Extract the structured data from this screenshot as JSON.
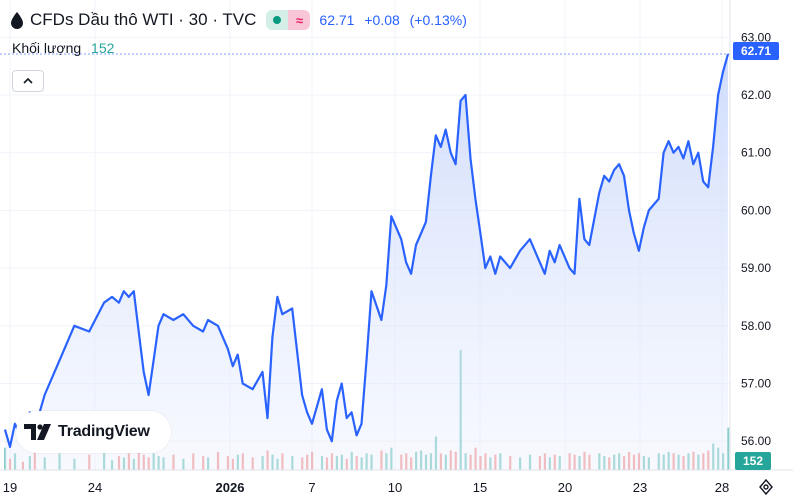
{
  "header": {
    "title": "CFDs Dầu thô WTI · 30 · TVC",
    "price": "62.71",
    "change": "+0.08",
    "change_pct": "(+0.13%)",
    "volume_label": "Khối lượng",
    "volume_value": "152"
  },
  "logo_text": "TradingView",
  "colors": {
    "line": "#2962ff",
    "area_top": "#c7d6fb",
    "vol_up": "#26a69a",
    "vol_down": "#ef5350",
    "price_tag": "#2962ff",
    "vol_tag": "#26a69a"
  },
  "icons": [
    "drop-icon",
    "chevron-up-icon",
    "tradingview-logo-icon",
    "settings-icon"
  ],
  "chart_data": {
    "type": "area",
    "price_axis_labels": [
      "63.00",
      "62.00",
      "61.00",
      "60.00",
      "59.00",
      "58.00",
      "57.00",
      "56.00"
    ],
    "time_axis_labels": [
      "19",
      "24",
      "2026",
      "7",
      "10",
      "15",
      "20",
      "23",
      "28"
    ],
    "ylim": [
      55.5,
      63.3
    ],
    "last_price_label": "62.71",
    "last_volume_label": "152",
    "grid": true,
    "x_index": [
      0,
      5,
      10,
      18,
      25,
      30,
      40,
      55,
      70,
      85,
      100,
      108,
      115,
      120,
      125,
      130,
      135,
      140,
      145,
      150,
      155,
      160,
      170,
      180,
      190,
      200,
      205,
      215,
      225,
      230,
      235,
      240,
      250,
      260,
      265,
      270,
      275,
      280,
      290,
      300,
      305,
      310,
      320,
      325,
      330,
      335,
      340,
      345,
      350,
      355,
      360,
      365,
      370,
      380,
      385,
      390,
      400,
      405,
      410,
      415,
      420,
      425,
      430,
      435,
      440,
      445,
      450,
      455,
      460,
      465,
      470,
      475,
      480,
      485,
      490,
      495,
      500,
      510,
      520,
      530,
      540,
      545,
      550,
      555,
      560,
      570,
      575,
      580,
      585,
      590,
      600,
      605,
      610,
      615,
      620,
      625,
      630,
      635,
      640,
      645,
      650,
      660,
      665,
      670,
      675,
      680,
      685,
      690,
      695,
      700,
      705,
      710,
      715,
      720,
      725,
      730
    ],
    "values": [
      56.2,
      55.9,
      56.3,
      56.0,
      56.5,
      56.2,
      56.8,
      57.4,
      58.0,
      57.9,
      58.4,
      58.5,
      58.4,
      58.6,
      58.5,
      58.6,
      57.9,
      57.2,
      56.8,
      57.4,
      58.0,
      58.2,
      58.1,
      58.2,
      58.0,
      57.9,
      58.1,
      58.0,
      57.6,
      57.3,
      57.5,
      57.0,
      56.9,
      57.2,
      56.4,
      57.8,
      58.5,
      58.2,
      58.3,
      56.8,
      56.5,
      56.3,
      56.9,
      56.2,
      56.0,
      56.7,
      57.0,
      56.4,
      56.5,
      56.1,
      56.3,
      57.4,
      58.6,
      58.1,
      58.7,
      59.9,
      59.5,
      59.1,
      58.9,
      59.4,
      59.6,
      59.8,
      60.6,
      61.3,
      61.1,
      61.4,
      61.0,
      60.8,
      61.9,
      62.0,
      60.9,
      60.2,
      59.6,
      59.0,
      59.2,
      58.9,
      59.2,
      59.0,
      59.3,
      59.5,
      59.1,
      58.9,
      59.3,
      59.1,
      59.4,
      59.0,
      58.9,
      60.2,
      59.5,
      59.4,
      60.3,
      60.6,
      60.5,
      60.7,
      60.8,
      60.6,
      60.0,
      59.6,
      59.3,
      59.7,
      60.0,
      60.2,
      61.0,
      61.2,
      61.0,
      61.1,
      60.9,
      61.2,
      60.8,
      61.0,
      60.5,
      60.4,
      61.1,
      62.0,
      62.4,
      62.71
    ],
    "volume_values": [
      80,
      40,
      60,
      30,
      50,
      70,
      45,
      60,
      40,
      55,
      65,
      35,
      50,
      45,
      60,
      40,
      70,
      55,
      45,
      60,
      50,
      45,
      55,
      40,
      60,
      50,
      45,
      65,
      50,
      40,
      55,
      60,
      45,
      50,
      70,
      55,
      40,
      60,
      50,
      45,
      55,
      65,
      50,
      45,
      60,
      50,
      55,
      40,
      65,
      50,
      45,
      60,
      55,
      70,
      60,
      80,
      55,
      60,
      45,
      65,
      70,
      55,
      60,
      120,
      60,
      55,
      70,
      65,
      430,
      60,
      55,
      80,
      50,
      60,
      45,
      55,
      60,
      50,
      45,
      55,
      50,
      60,
      45,
      55,
      50,
      60,
      55,
      50,
      65,
      55,
      60,
      50,
      45,
      55,
      60,
      50,
      65,
      55,
      60,
      50,
      45,
      60,
      55,
      65,
      60,
      55,
      50,
      60,
      65,
      55,
      60,
      70,
      95,
      80,
      60,
      152
    ]
  }
}
